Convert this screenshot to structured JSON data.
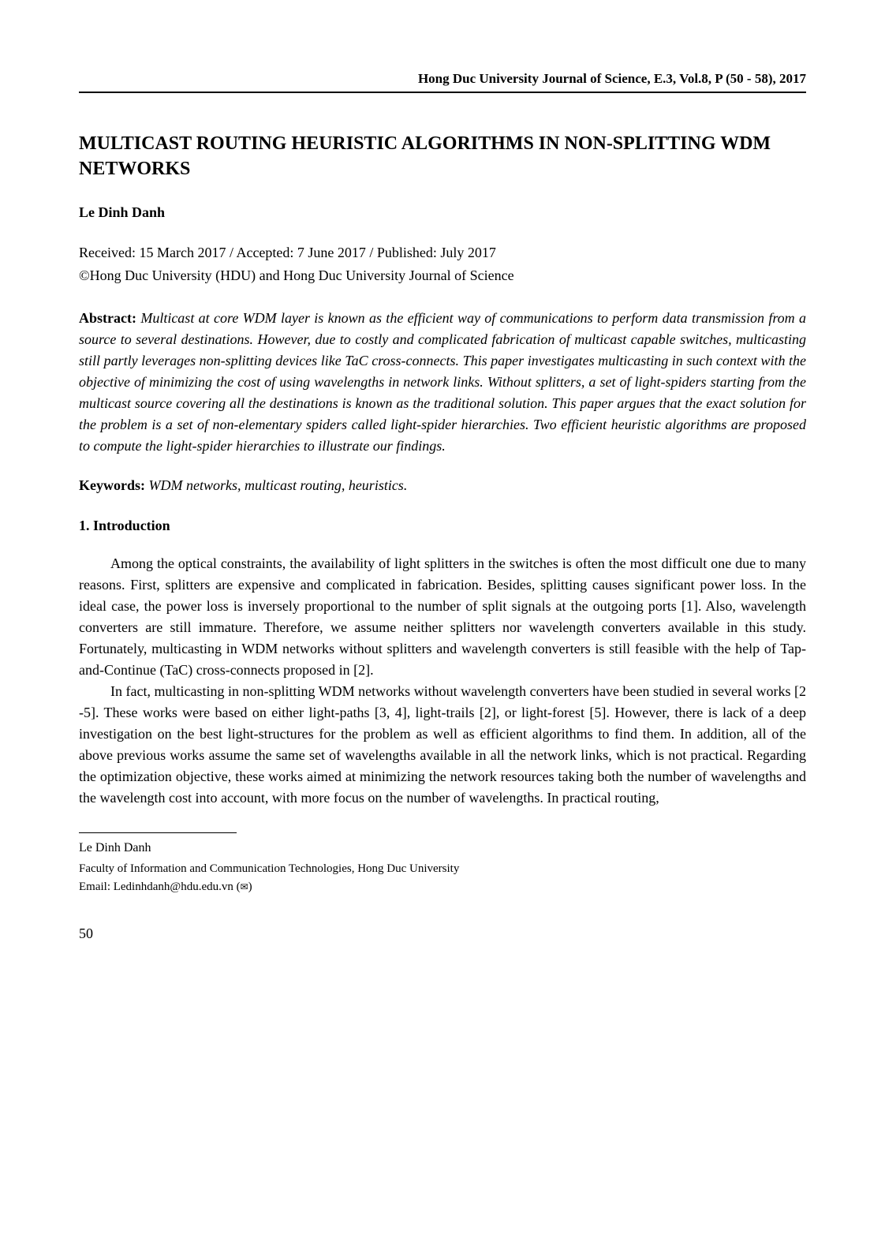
{
  "running_header": "Hong Duc University Journal of Science, E.3, Vol.8, P (50 - 58), 2017",
  "title": "MULTICAST ROUTING HEURISTIC ALGORITHMS IN NON-SPLITTING WDM NETWORKS",
  "authors": "Le Dinh Danh",
  "pub_dates": "Received: 15 March 2017 / Accepted: 7 June 2017 / Published: July 2017",
  "copyright": "©Hong Duc University (HDU) and Hong Duc University Journal of Science",
  "abstract_label": "Abstract:",
  "abstract_text": " Multicast at core WDM layer is known as the efficient way of communications to perform data transmission from a source to several destinations. However, due to costly and complicated fabrication of multicast capable switches, multicasting still partly leverages non-splitting devices like TaC cross-connects. This paper investigates multicasting in such context with the objective of minimizing the cost of using wavelengths in network links. Without splitters, a set of light-spiders starting from the multicast source covering all the destinations is known as the traditional solution. This paper argues that the exact solution for the problem is a set of non-elementary spiders called light-spider hierarchies. Two efficient heuristic algorithms are proposed to compute the light-spider hierarchies to illustrate our findings.",
  "keywords_label": "Keywords:",
  "keywords_text": " WDM networks, multicast routing, heuristics.",
  "section1_heading": "1. Introduction",
  "para1": "Among the optical constraints, the availability of light splitters in the switches is often the most difficult one due to many reasons. First, splitters are expensive and complicated in fabrication. Besides, splitting causes significant power loss. In the ideal case, the power loss is inversely proportional to the number of split signals at the outgoing ports [1]. Also, wavelength converters are still immature. Therefore, we assume neither splitters nor wavelength converters available in this study. Fortunately, multicasting in WDM networks without splitters and wavelength converters is still feasible with the help of Tap-and-Continue (TaC) cross-connects proposed in [2].",
  "para2": "In fact, multicasting in non-splitting WDM networks without wavelength converters have been studied in several works [2 -5]. These works were based on either light-paths [3, 4], light-trails [2], or light-forest [5]. However, there is lack of a deep investigation on the best light-structures for the problem as well as efficient algorithms to find them. In addition, all of the above previous works assume the same set of wavelengths available in all the network links, which is not practical. Regarding the optimization objective, these works aimed at minimizing the network resources taking both the number of wavelengths and the wavelength cost into account, with more focus on the number of wavelengths. In practical routing,",
  "footnote_name": "Le Dinh Danh",
  "footnote_affiliation": "Faculty of Information and Communication Technologies, Hong Duc University",
  "footnote_email_prefix": "Email: Ledinhdanh@hdu.edu.vn (",
  "footnote_email_suffix": ")",
  "envelope_glyph": "✉",
  "page_number": "50"
}
